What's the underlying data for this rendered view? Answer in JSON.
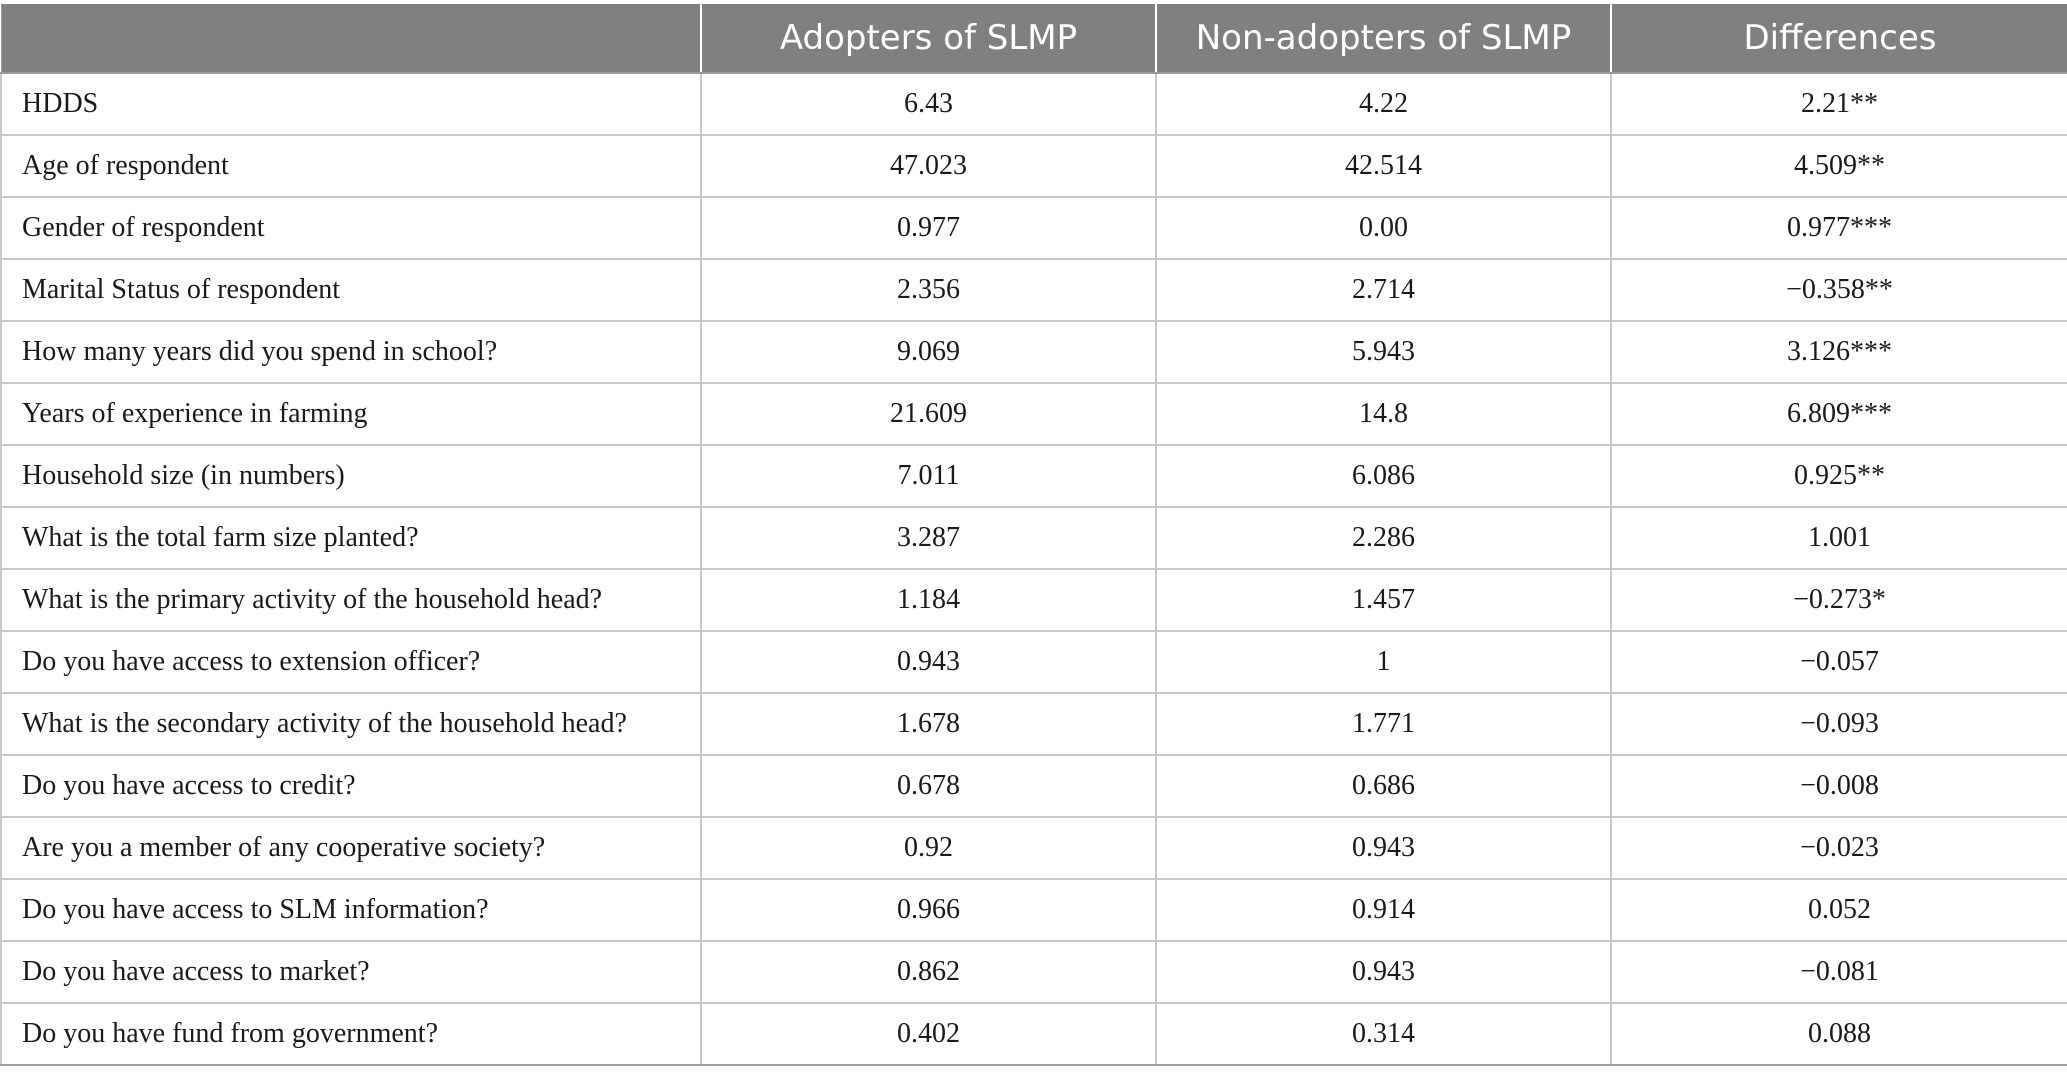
{
  "table": {
    "headers": [
      "",
      "Adopters of SLMP",
      "Non-adopters of SLMP",
      "Differences"
    ],
    "rows": [
      {
        "label": "HDDS",
        "adopters": "6.43",
        "non_adopters": "4.22",
        "differences": "2.21**"
      },
      {
        "label": "Age of respondent",
        "adopters": "47.023",
        "non_adopters": "42.514",
        "differences": "4.509**"
      },
      {
        "label": "Gender of respondent",
        "adopters": "0.977",
        "non_adopters": "0.00",
        "differences": "0.977***"
      },
      {
        "label": "Marital Status of respondent",
        "adopters": "2.356",
        "non_adopters": "2.714",
        "differences": "−0.358**"
      },
      {
        "label": "How many years did you spend in school?",
        "adopters": "9.069",
        "non_adopters": "5.943",
        "differences": "3.126***"
      },
      {
        "label": "Years of experience in farming",
        "adopters": "21.609",
        "non_adopters": "14.8",
        "differences": "6.809***"
      },
      {
        "label": "Household size (in numbers)",
        "adopters": "7.011",
        "non_adopters": "6.086",
        "differences": "0.925**"
      },
      {
        "label": "What is the total farm size planted?",
        "adopters": "3.287",
        "non_adopters": "2.286",
        "differences": "1.001"
      },
      {
        "label": "What is the primary activity of the household head?",
        "adopters": "1.184",
        "non_adopters": "1.457",
        "differences": "−0.273*"
      },
      {
        "label": "Do you have access to extension officer?",
        "adopters": "0.943",
        "non_adopters": "1",
        "differences": "−0.057"
      },
      {
        "label": "What is the secondary activity of the household head?",
        "adopters": "1.678",
        "non_adopters": "1.771",
        "differences": "−0.093"
      },
      {
        "label": "Do you have access to credit?",
        "adopters": "0.678",
        "non_adopters": "0.686",
        "differences": "−0.008"
      },
      {
        "label": "Are you a member of any cooperative society?",
        "adopters": "0.92",
        "non_adopters": "0.943",
        "differences": "−0.023"
      },
      {
        "label": "Do you have access to SLM information?",
        "adopters": "0.966",
        "non_adopters": "0.914",
        "differences": "0.052"
      },
      {
        "label": "Do you have access to market?",
        "adopters": "0.862",
        "non_adopters": "0.943",
        "differences": "−0.081"
      },
      {
        "label": "Do you have fund from government?",
        "adopters": "0.402",
        "non_adopters": "0.314",
        "differences": "0.088"
      }
    ]
  }
}
